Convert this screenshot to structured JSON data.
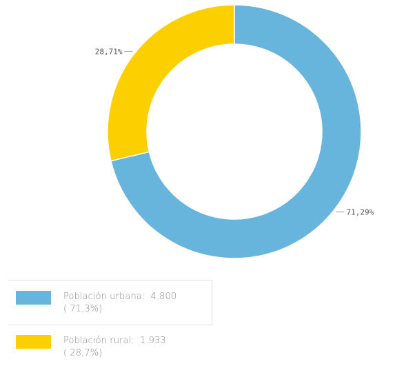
{
  "chart_data": {
    "type": "pie",
    "variant": "donut",
    "slices": [
      {
        "name": "Población urbana",
        "value": 4800,
        "value_label": "4.800",
        "percent_label": "71,29%",
        "legend_percent": "( 71,3%)",
        "color": "#67b4dc"
      },
      {
        "name": "Población rural",
        "value": 1933,
        "value_label": "1.933",
        "percent_label": "28,71%",
        "legend_percent": "( 28,7%)",
        "color": "#fccf00"
      }
    ],
    "start_angle": "12 o'clock",
    "direction": "clockwise",
    "legend_placement": "bottom-left"
  },
  "legend": {
    "items": [
      {
        "label": "Población urbana:",
        "value": "4.800",
        "percent": "( 71,3%)",
        "color": "#67b4dc"
      },
      {
        "label": "Población rural:",
        "value": "1.933",
        "percent": "( 28,7%)",
        "color": "#fccf00"
      }
    ]
  }
}
